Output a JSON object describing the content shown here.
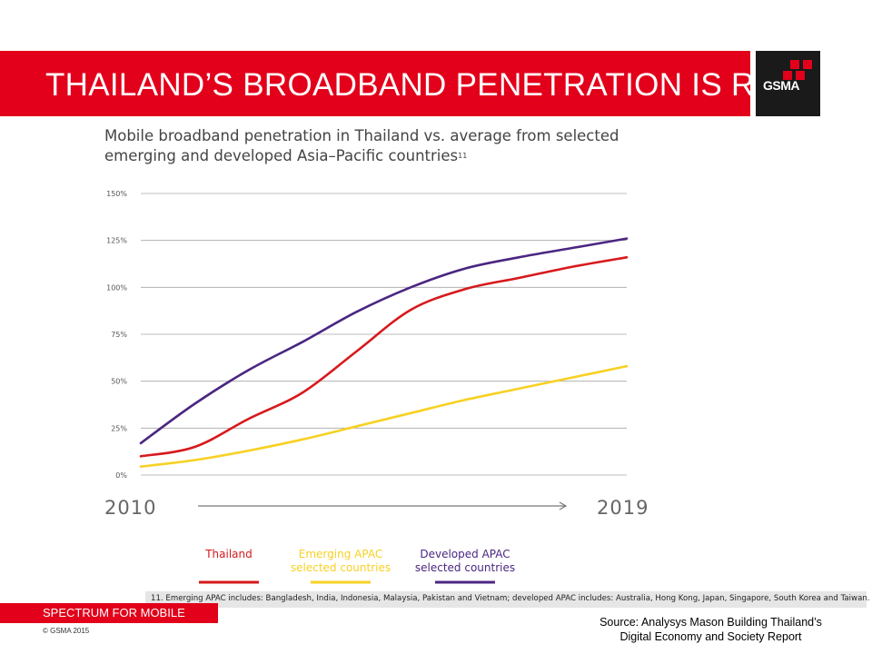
{
  "slide": {
    "title": "THAILAND’S BROADBAND PENETRATION IS RIS",
    "logo_text": "GSMA",
    "footer_label": "SPECTRUM FOR MOBILE",
    "copyright": "© GSMA 2015",
    "source_line1": "Source: Analysys Mason Building Thailand’s",
    "source_line2": "Digital Economy and Society Report",
    "footnote": "11.   Emerging APAC includes: Bangladesh, India, Indonesia, Malaysia, Pakistan and Vietnam; developed APAC includes: Australia, Hong Kong, Japan, Singapore, South Korea and Taiwan.",
    "colors": {
      "brand_red": "#e2001a",
      "logo_bg": "#1a1a1a"
    }
  },
  "chart_data": {
    "type": "line",
    "title_line1": "Mobile broadband penetration in Thailand vs. average from selected",
    "title_line2": "emerging and developed Asia–Pacific countries",
    "title_footnote": "11",
    "x_start_label": "2010",
    "x_end_label": "2019",
    "x": [
      2010,
      2011,
      2012,
      2013,
      2014,
      2015,
      2016,
      2017,
      2018,
      2019
    ],
    "ylim": [
      0,
      150
    ],
    "yticks": [
      0,
      25,
      50,
      75,
      100,
      125,
      150
    ],
    "ytick_labels": [
      "0%",
      "25%",
      "50%",
      "75%",
      "100%",
      "125%",
      "150%"
    ],
    "grid": true,
    "series": [
      {
        "name": "Thailand",
        "color": "#d7191c",
        "values": [
          10,
          15,
          30,
          44,
          66,
          88,
          99,
          105,
          111,
          116
        ]
      },
      {
        "name": "Emerging APAC selected countries",
        "color": "#f7d123",
        "values": [
          4.5,
          8,
          13,
          19,
          26,
          33,
          40,
          46,
          52,
          58
        ]
      },
      {
        "name": "Developed APAC selected countries",
        "color": "#4b2682",
        "values": [
          17,
          38,
          56,
          71,
          87,
          100,
          110,
          116,
          121,
          126
        ]
      }
    ],
    "legend_position": "bottom"
  }
}
